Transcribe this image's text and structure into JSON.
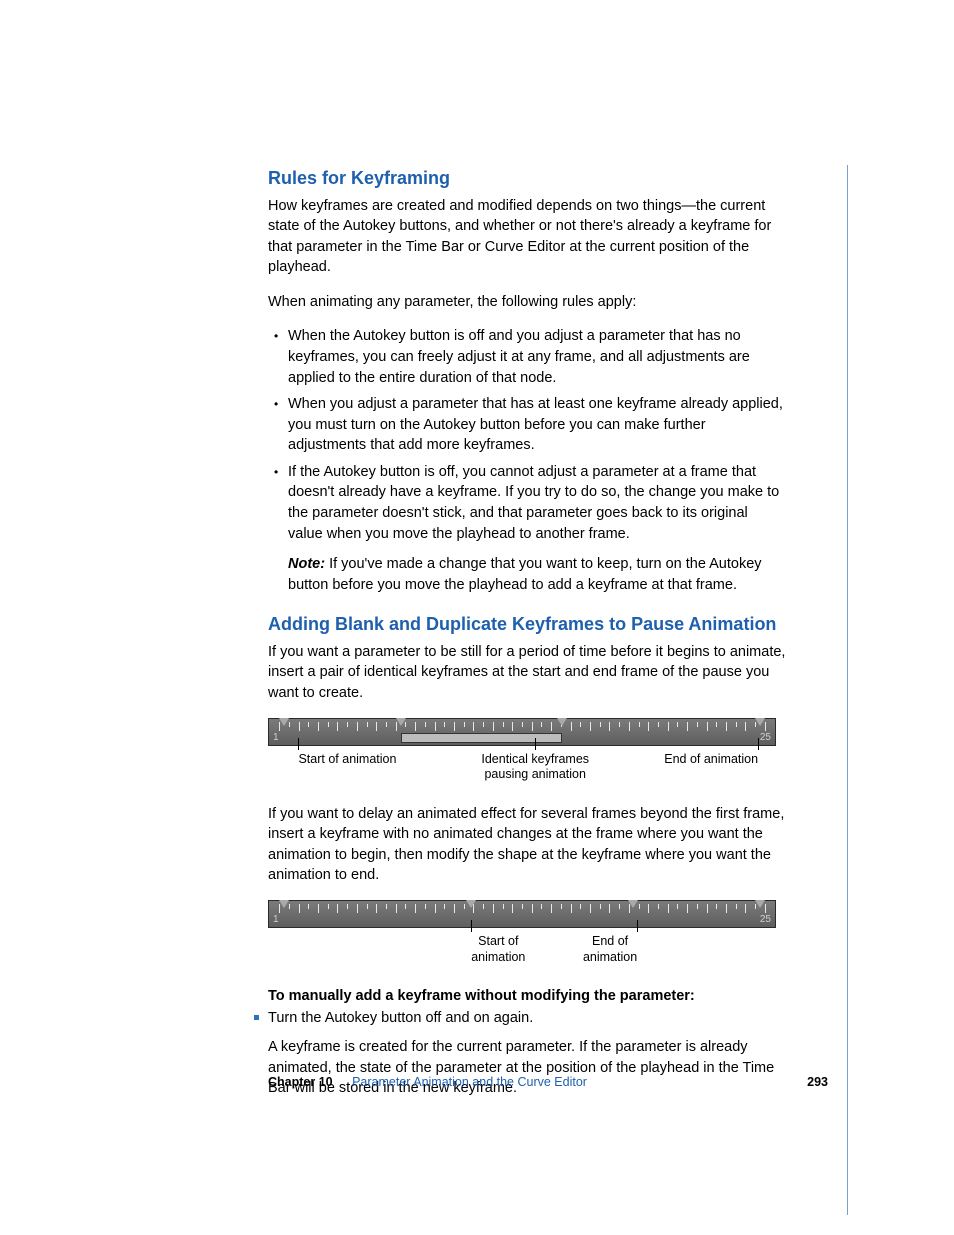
{
  "section1": {
    "heading": "Rules for Keyframing",
    "p1": "How keyframes are created and modified depends on two things—the current state of the Autokey buttons, and whether or not there's already a keyframe for that parameter in the Time Bar or Curve Editor at the current position of the playhead.",
    "p2": "When animating any parameter, the following rules apply:",
    "bullets": [
      "When the Autokey button is off and you adjust a parameter that has no keyframes, you can freely adjust it at any frame, and all adjustments are applied to the entire duration of that node.",
      "When you adjust a parameter that has at least one keyframe already applied, you must turn on the Autokey button before you can make further adjustments that add more keyframes.",
      "If the Autokey button is off, you cannot adjust a parameter at a frame that doesn't already have a keyframe. If you try to do so, the change you make to the parameter doesn't stick, and that parameter goes back to its original value when you move the playhead to another frame."
    ],
    "note_label": "Note:",
    "note_text": "  If you've made a change that you want to keep, turn on the Autokey button before you move the playhead to add a keyframe at that frame."
  },
  "section2": {
    "heading": "Adding Blank and Duplicate Keyframes to Pause Animation",
    "p1": "If you want a parameter to be still for a period of time before it begins to animate, insert a pair of identical keyframes at the start and end frame of the pause you want to create.",
    "p2": "If you want to delay an animated effect for several frames beyond the first frame, insert a keyframe with no animated changes at the frame where you want the animation to begin, then modify the shape at the keyframe where you want the animation to end.",
    "boldline": "To manually add a keyframe without modifying the parameter:",
    "squareitem": "Turn the Autokey button off and on again.",
    "p3": "A keyframe is created for the current parameter. If the parameter is already animated, the state of the parameter at the position of the playhead in the Time Bar will be stored in the new keyframe."
  },
  "timeline1": {
    "start_num": "1",
    "end_num": "25",
    "markers_pct": [
      3,
      26,
      58,
      97
    ],
    "bar": {
      "left_pct": 26,
      "right_pct": 58
    },
    "labels": [
      {
        "text_lines": [
          "Start of animation"
        ],
        "left_pct": 6,
        "stem_pct": 0
      },
      {
        "text_lines": [
          "Identical keyframes",
          "pausing animation"
        ],
        "left_pct": 42,
        "stem_pct": 50
      },
      {
        "text_lines": [
          "End of animation"
        ],
        "left_pct": 78,
        "stem_pct": 100
      }
    ]
  },
  "timeline2": {
    "start_num": "1",
    "end_num": "25",
    "markers_pct": [
      3,
      40,
      72,
      97
    ],
    "bar": null,
    "labels": [
      {
        "text_lines": [
          "Start of",
          "animation"
        ],
        "left_pct": 40,
        "stem_pct": 0
      },
      {
        "text_lines": [
          "End of",
          "animation"
        ],
        "left_pct": 62,
        "stem_pct": 100
      }
    ]
  },
  "footer": {
    "chapter": "Chapter 10",
    "title": "Parameter Animation and the Curve Editor",
    "page": "293"
  },
  "style": {
    "heading_color": "#1e5fae",
    "ruler_bg_top": "#7b7b7b",
    "ruler_bg_bottom": "#5e5e5e",
    "tick_count": 50
  }
}
